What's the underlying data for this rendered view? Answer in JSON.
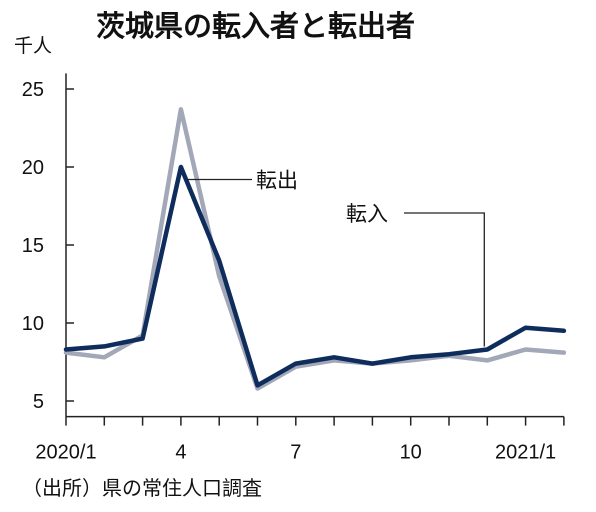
{
  "chart_data": {
    "type": "line",
    "title": "茨城県の転入者と転出者",
    "unit": "千人",
    "source": "（出所）県の常住人口調査",
    "x": [
      "2020/1",
      "2020/2",
      "2020/3",
      "2020/4",
      "2020/5",
      "2020/6",
      "2020/7",
      "2020/8",
      "2020/9",
      "2020/10",
      "2020/11",
      "2020/12",
      "2021/1",
      "2021/2"
    ],
    "x_tick_labels": [
      {
        "index": 0,
        "text": "2020/1"
      },
      {
        "index": 3,
        "text": "4"
      },
      {
        "index": 6,
        "text": "7"
      },
      {
        "index": 9,
        "text": "10"
      },
      {
        "index": 12,
        "text": "2021/1"
      }
    ],
    "y_ticks": [
      5,
      10,
      15,
      20,
      25
    ],
    "ylim": [
      4,
      26
    ],
    "grid": false,
    "series": [
      {
        "name": "転入",
        "color": "#0f2d5c",
        "values": [
          8.3,
          8.5,
          9.0,
          20.0,
          14.0,
          6.0,
          7.4,
          7.8,
          7.4,
          7.8,
          8.0,
          8.3,
          9.7,
          9.5
        ]
      },
      {
        "name": "転出",
        "color": "#a3a8b8",
        "values": [
          8.1,
          7.8,
          9.2,
          23.7,
          13.0,
          5.8,
          7.2,
          7.6,
          7.4,
          7.6,
          7.9,
          7.6,
          8.3,
          8.1
        ]
      }
    ],
    "annotations": [
      {
        "series": 1,
        "text": "転出"
      },
      {
        "series": 0,
        "text": "転入"
      }
    ]
  }
}
